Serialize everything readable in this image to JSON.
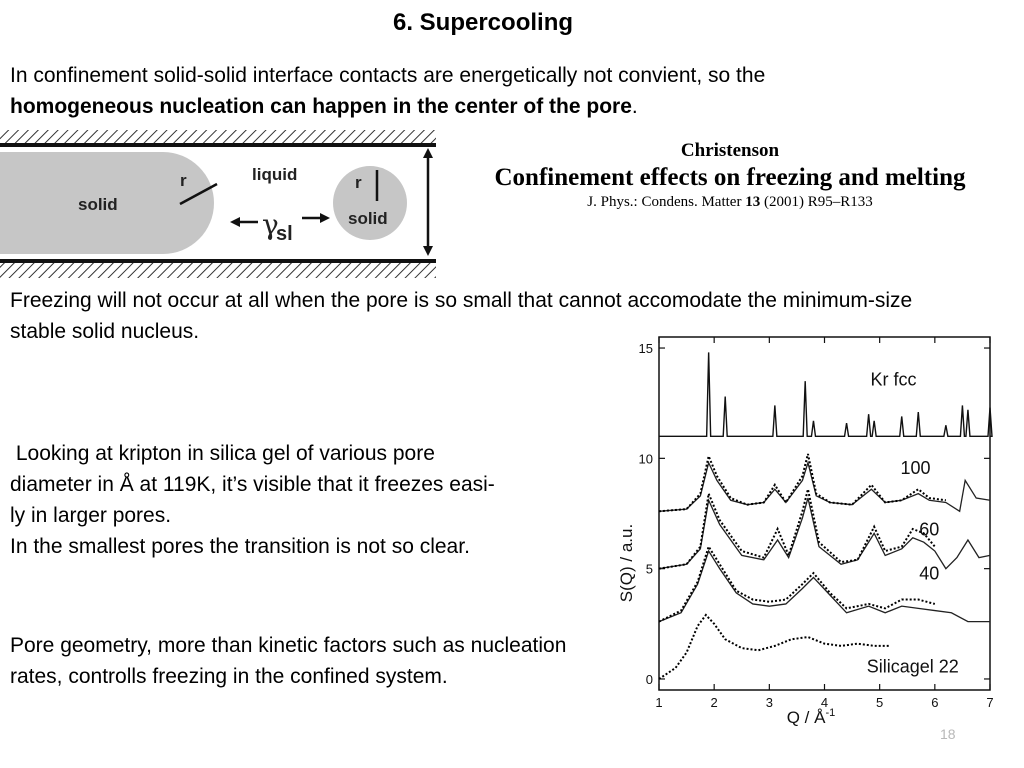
{
  "slide": {
    "title": "6. Supercooling",
    "p1_plain": "In confinement solid-solid interface contacts are energetically not convient, so the",
    "p1_bold": "homogeneous nucleation can happen in the center of the pore",
    "p1_end": ".",
    "p2": "Freezing will not occur at all when the pore is so small that cannot accomodate the minimum-size stable solid nucleus.",
    "p3_line1": " Looking at kripton in silica gel of various pore",
    "p3_line2": "diameter in Å at 119K, it’s visible that it freezes easi-",
    "p3_line3": "ly in larger pores.",
    "p3_line4": "In the smallest pores the transition is not so clear.",
    "p4": "Pore geometry, more than kinetic factors such as nucleation rates, controlls freezing in the confined system.",
    "page_number": "18"
  },
  "reference": {
    "author": "Christenson",
    "title": "Confinement effects on freezing and melting",
    "journal_prefix": "J. Phys.: Condens. Matter ",
    "volume": "13",
    "journal_suffix": " (2001) R95–R133"
  },
  "pore_diagram": {
    "solid_left_label": "solid",
    "liquid_label": "liquid",
    "r_left": "r",
    "r_right": "r",
    "gamma_symbol": "γ",
    "gamma_subscript": "sl",
    "solid_right_label": "solid"
  },
  "chart_data": {
    "type": "line",
    "xlabel": "Q / Å",
    "xlabel_sup": "-1",
    "ylabel": "S(Q) / a.u.",
    "xlim": [
      1,
      7
    ],
    "ylim": [
      -0.5,
      15.5
    ],
    "x_ticks": [
      "1",
      "2",
      "3",
      "4",
      "5",
      "6",
      "7"
    ],
    "y_ticks": [
      {
        "value": 0,
        "label": "0"
      },
      {
        "value": 5,
        "label": "5"
      },
      {
        "value": 10,
        "label": "10"
      },
      {
        "value": 15,
        "label": "15"
      }
    ],
    "curve_labels": [
      {
        "text": "Kr fcc",
        "x": 5.25,
        "y": 13.3
      },
      {
        "text": "100",
        "x": 5.65,
        "y": 9.3
      },
      {
        "text": "60",
        "x": 5.9,
        "y": 6.5
      },
      {
        "text": "40",
        "x": 5.9,
        "y": 4.5
      },
      {
        "text": "Silicagel 22",
        "x": 5.6,
        "y": 0.3
      }
    ],
    "kr_fcc": {
      "baseline": 11.0,
      "peaks": [
        {
          "q": 1.9,
          "h": 3.8
        },
        {
          "q": 2.2,
          "h": 1.8
        },
        {
          "q": 3.1,
          "h": 1.4
        },
        {
          "q": 3.65,
          "h": 2.5
        },
        {
          "q": 3.8,
          "h": 0.7
        },
        {
          "q": 4.4,
          "h": 0.6
        },
        {
          "q": 4.8,
          "h": 1.0
        },
        {
          "q": 4.9,
          "h": 0.7
        },
        {
          "q": 5.4,
          "h": 0.9
        },
        {
          "q": 5.7,
          "h": 1.1
        },
        {
          "q": 6.2,
          "h": 0.5
        },
        {
          "q": 6.5,
          "h": 1.4
        },
        {
          "q": 6.6,
          "h": 1.2
        },
        {
          "q": 7.0,
          "h": 1.3
        }
      ]
    },
    "series": [
      {
        "name": "100",
        "x": [
          1.0,
          1.5,
          1.75,
          1.9,
          2.05,
          2.3,
          2.6,
          2.9,
          3.1,
          3.3,
          3.6,
          3.7,
          3.85,
          4.1,
          4.5,
          4.85,
          5.1,
          5.4,
          5.7,
          5.9,
          6.2,
          6.45,
          6.55,
          6.75,
          7.0
        ],
        "exp": [
          7.6,
          7.7,
          8.4,
          10.1,
          9.2,
          8.2,
          7.9,
          8.0,
          8.8,
          8.0,
          9.2,
          10.2,
          8.4,
          8.0,
          7.9,
          8.8,
          8.0,
          8.1,
          8.6,
          8.2,
          8.1,
          null,
          null,
          null,
          null
        ],
        "fit": [
          7.6,
          7.7,
          8.3,
          9.8,
          9.0,
          8.1,
          7.9,
          8.0,
          8.6,
          8.0,
          9.0,
          9.8,
          8.3,
          8.0,
          7.9,
          8.6,
          8.0,
          8.1,
          8.4,
          8.1,
          8.0,
          7.6,
          9.0,
          8.2,
          8.1
        ]
      },
      {
        "name": "60",
        "x": [
          1.0,
          1.5,
          1.75,
          1.9,
          2.1,
          2.5,
          2.9,
          3.15,
          3.35,
          3.6,
          3.7,
          3.9,
          4.3,
          4.6,
          4.9,
          5.1,
          5.4,
          5.6,
          5.8,
          6.0,
          6.2,
          6.4,
          6.6,
          6.8,
          7.0
        ],
        "exp": [
          5.0,
          5.2,
          6.0,
          8.4,
          7.2,
          5.8,
          5.5,
          6.8,
          5.6,
          7.6,
          8.6,
          6.2,
          5.3,
          5.4,
          6.9,
          5.8,
          6.0,
          6.8,
          6.6,
          6.0,
          null,
          null,
          null,
          null,
          null
        ],
        "fit": [
          5.0,
          5.2,
          5.9,
          8.1,
          7.0,
          5.6,
          5.4,
          6.3,
          5.5,
          7.3,
          8.2,
          6.0,
          5.2,
          5.4,
          6.6,
          5.6,
          5.9,
          6.4,
          6.2,
          5.8,
          5.0,
          5.5,
          6.3,
          5.5,
          5.6
        ]
      },
      {
        "name": "40",
        "x": [
          1.0,
          1.4,
          1.7,
          1.9,
          2.1,
          2.4,
          2.7,
          3.0,
          3.3,
          3.6,
          3.8,
          4.1,
          4.4,
          4.8,
          5.1,
          5.4,
          5.7,
          6.0,
          6.3,
          6.6,
          6.8,
          7.0
        ],
        "exp": [
          2.6,
          3.1,
          4.4,
          6.0,
          5.2,
          4.0,
          3.6,
          3.5,
          3.6,
          4.3,
          4.8,
          3.9,
          3.2,
          3.4,
          3.2,
          3.6,
          3.6,
          3.4,
          null,
          null,
          null,
          null
        ],
        "fit": [
          2.6,
          3.0,
          4.3,
          5.8,
          5.0,
          3.9,
          3.4,
          3.3,
          3.4,
          4.1,
          4.6,
          3.8,
          3.0,
          3.3,
          3.0,
          3.3,
          3.2,
          3.1,
          3.0,
          2.6,
          2.6,
          2.6
        ]
      },
      {
        "name": "Silicagel 22",
        "x": [
          1.0,
          1.3,
          1.5,
          1.7,
          1.85,
          2.0,
          2.2,
          2.5,
          2.8,
          3.1,
          3.4,
          3.7,
          4.0,
          4.3,
          4.6,
          4.9,
          5.2
        ],
        "exp": [
          0.0,
          0.5,
          1.2,
          2.4,
          2.9,
          2.5,
          1.8,
          1.4,
          1.3,
          1.5,
          1.8,
          1.9,
          1.6,
          1.5,
          1.6,
          1.5,
          1.5
        ],
        "fit": []
      }
    ]
  }
}
